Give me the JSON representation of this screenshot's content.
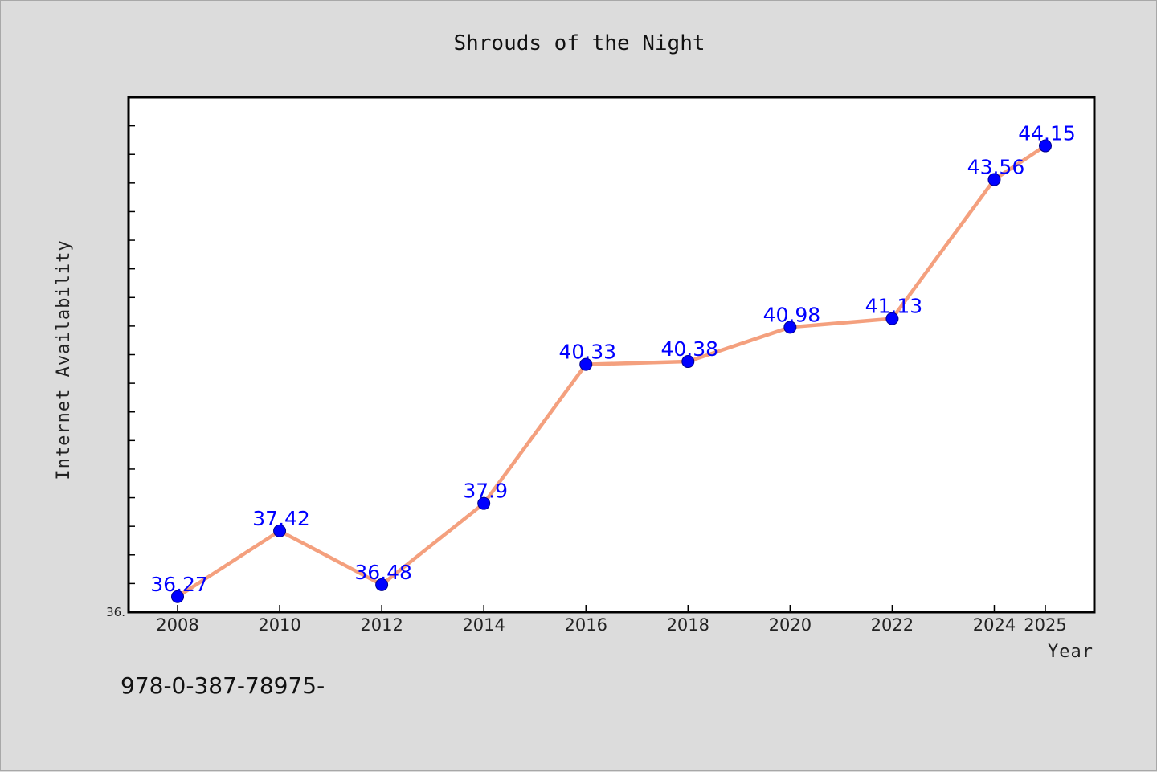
{
  "colors": {
    "background": "#dcdcdc",
    "plot_background": "#ffffff",
    "line": "#f4a07e",
    "marker": "#0000ff",
    "data_label": "#0000ff"
  },
  "footer": {
    "text": "978-0-387-78975-"
  },
  "chart_data": {
    "type": "line",
    "title": "Shrouds of the Night",
    "xlabel": "Year",
    "ylabel": "Internet Availability",
    "y_axis_label": "36.",
    "ylim": [
      36.0,
      45.0
    ],
    "grid": false,
    "categories": [
      "2008",
      "2010",
      "2012",
      "2014",
      "2016",
      "2018",
      "2020",
      "2022",
      "2024",
      "2025"
    ],
    "series": [
      {
        "values": [
          36.27,
          37.42,
          36.48,
          37.9,
          40.33,
          40.38,
          40.98,
          41.13,
          43.56,
          44.15
        ],
        "labels": [
          "36.27",
          "37.42",
          "36.48",
          "37.9",
          "40.33",
          "40.38",
          "40.98",
          "41.13",
          "43.56",
          "44.15"
        ]
      }
    ]
  }
}
